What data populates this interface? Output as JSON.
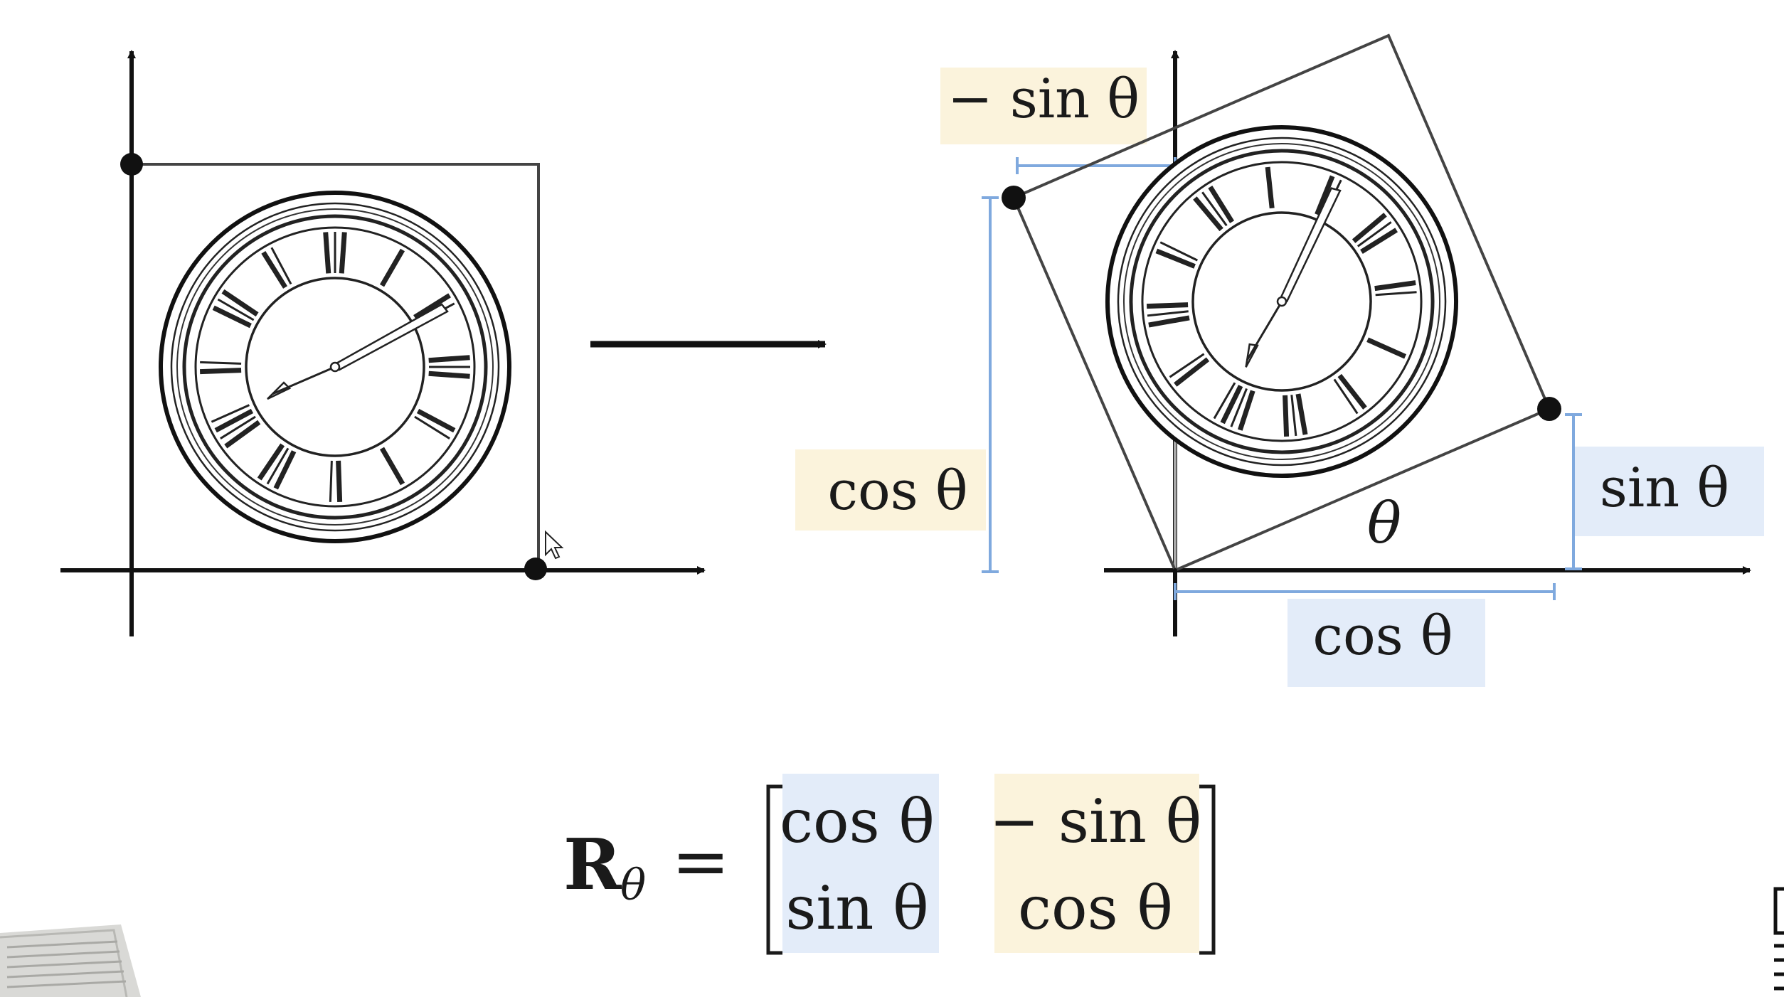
{
  "colors": {
    "axis": "#111111",
    "square": "#444444",
    "blue_measure": "#7fa9de",
    "blue_highlight": "#e3ecf9",
    "yellow_highlight": "#fbf3dc",
    "ink": "#1a1a1a",
    "dot": "#111111"
  },
  "icons": {
    "clock": "clock-face-icon",
    "arrow": "right-arrow-icon",
    "cursor": "mouse-cursor-icon"
  },
  "right_diagram": {
    "label_neg_sin": "− sin θ",
    "label_cos_left": "cos θ",
    "label_sin_right": "sin θ",
    "label_cos_bottom": "cos θ",
    "label_theta": "θ"
  },
  "formula": {
    "lhs_symbol": "R",
    "lhs_subscript": "θ",
    "equals": "=",
    "m11": "cos θ",
    "m12": "− sin θ",
    "m21": "sin θ",
    "m22": "cos θ"
  }
}
